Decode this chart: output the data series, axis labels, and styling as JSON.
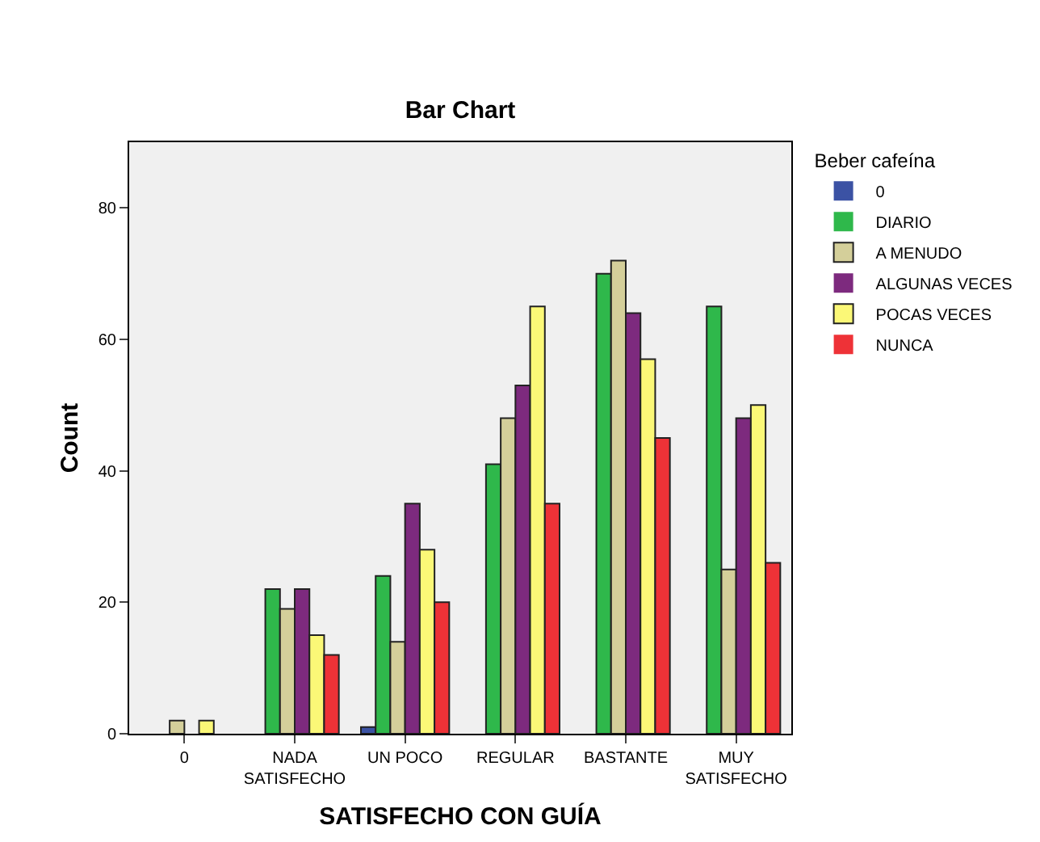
{
  "chart_data": {
    "type": "bar",
    "title": "Bar Chart",
    "xlabel": "SATISFECHO CON GUÍA",
    "ylabel": "Count",
    "legend_title": "Beber cafeína",
    "categories": [
      "0",
      "NADA\nSATISFECHO",
      "UN POCO",
      "REGULAR",
      "BASTANTE",
      "MUY\nSATISFECHO"
    ],
    "series": [
      {
        "name": "0",
        "color": "#3b52a4",
        "values": [
          0,
          0,
          1,
          0,
          0,
          0
        ]
      },
      {
        "name": "DIARIO",
        "color": "#2fb84b",
        "values": [
          0,
          22,
          24,
          41,
          70,
          65
        ]
      },
      {
        "name": "A MENUDO",
        "color": "#d4cf9a",
        "values": [
          2,
          19,
          14,
          48,
          72,
          25
        ]
      },
      {
        "name": "ALGUNAS VECES",
        "color": "#7d2a7e",
        "values": [
          0,
          22,
          35,
          53,
          64,
          48
        ]
      },
      {
        "name": "POCAS VECES",
        "color": "#fbf877",
        "values": [
          2,
          15,
          28,
          65,
          57,
          50
        ]
      },
      {
        "name": "NUNCA",
        "color": "#ee3237",
        "values": [
          0,
          12,
          20,
          35,
          45,
          26
        ]
      }
    ],
    "ylim": [
      0,
      90
    ],
    "yticks": [
      0,
      20,
      40,
      60,
      80
    ],
    "grid": false,
    "legend": "right"
  }
}
